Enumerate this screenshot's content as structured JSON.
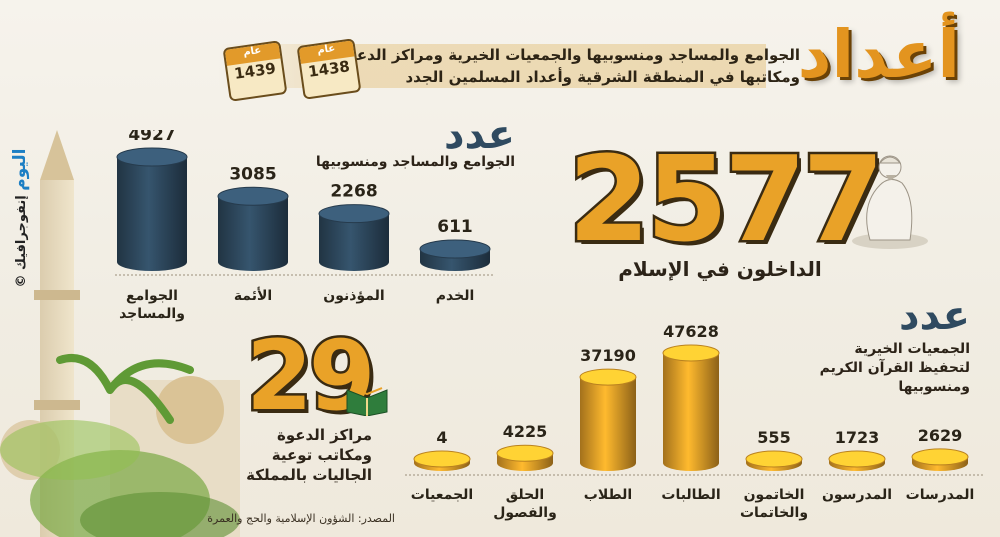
{
  "header": {
    "title": "أعداد",
    "subtitle_line1": "الجوامع والمساجد ومنسوبيها والجمعيات الخيرية ومراكز الدعوة",
    "subtitle_line2": "ومكاتبها في المنطقة الشرقية وأعداد المسلمين الجدد",
    "calendar_left_label": "عام",
    "calendar_left_year": "1439",
    "calendar_right_label": "عام",
    "calendar_right_year": "1438"
  },
  "converts": {
    "value": "2577",
    "label": "الداخلون في الإسلام"
  },
  "centers": {
    "value": "29",
    "label_line1": "مراكز الدعوة",
    "label_line2": "ومكاتب توعية",
    "label_line3": "الجاليات بالمملكة"
  },
  "brand": {
    "name": "اليوم",
    "credit": "إنفوجرافيك ©"
  },
  "source": "المصدر: الشؤون الإسلامية والحج والعمرة",
  "colors": {
    "accent_orange": "#e9a228",
    "dark_blue": "#2f4a60"
  },
  "chart_data": [
    {
      "type": "bar",
      "heading": "عدد",
      "subheading": "الجوامع والمساجد ومنسوبيها",
      "categories": [
        "الجوامع\nوالمساجد",
        "الأئمة",
        "المؤذنون",
        "الخدم"
      ],
      "values": [
        4927,
        3085,
        2268,
        611
      ],
      "value_labels": [
        "4927",
        "3085",
        "2268",
        "611"
      ],
      "color": "#2f4a60"
    },
    {
      "type": "bar",
      "heading": "عدد",
      "subheading_line1": "الجمعيات الخيرية",
      "subheading_line2": "لتحفيظ القرآن الكريم",
      "subheading_line3": "ومنسوبيها",
      "categories": [
        "المدرسات",
        "المدرسون",
        "الخاتمون\nوالخاتمات",
        "الطالبات",
        "الطلاب",
        "الحلق\nوالفصول",
        "الجمعيات"
      ],
      "values": [
        2629,
        1723,
        555,
        47628,
        37190,
        4225,
        4
      ],
      "value_labels": [
        "2629",
        "1723",
        "555",
        "47628",
        "37190",
        "4225",
        "4"
      ],
      "color": "#e9a228"
    }
  ]
}
